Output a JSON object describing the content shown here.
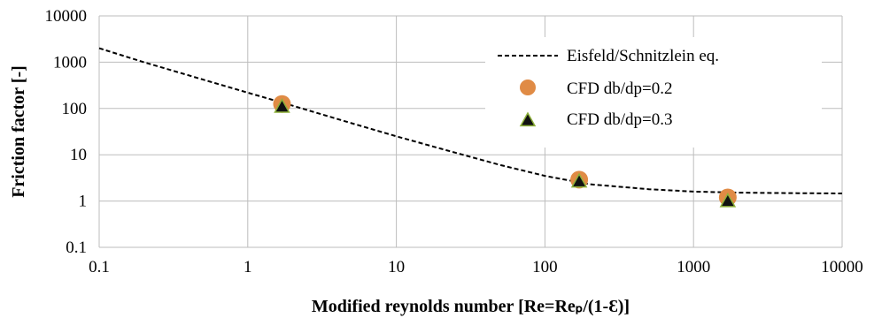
{
  "chart_data": {
    "type": "scatter",
    "xscale": "log",
    "yscale": "log",
    "xlim": [
      0.1,
      10000
    ],
    "ylim": [
      0.1,
      10000
    ],
    "x_ticks": [
      "0.1",
      "1",
      "10",
      "100",
      "1000",
      "10000"
    ],
    "y_ticks": [
      "0.1",
      "1",
      "10",
      "100",
      "1000",
      "10000"
    ],
    "xlabel": "Modified reynolds number [Re=Reₚ/(1-Ɛ)]",
    "ylabel": "Friction factor [-]",
    "grid": true,
    "legend_position": "top-right",
    "series": [
      {
        "name": "Eisfeld/Schnitzlein eq.",
        "kind": "dashed-line",
        "color": "#000000",
        "x": [
          0.1,
          0.2,
          0.5,
          1,
          2,
          5,
          10,
          20,
          50,
          100,
          200,
          500,
          1000,
          2000,
          5000,
          10000
        ],
        "y": [
          2000,
          1000,
          420,
          220,
          115,
          48,
          25,
          13.5,
          6,
          3.5,
          2.3,
          1.8,
          1.6,
          1.52,
          1.48,
          1.46
        ]
      },
      {
        "name": "CFD db/dp=0.2",
        "kind": "circle-markers",
        "color": "#E08B45",
        "x": [
          1.7,
          170,
          1700
        ],
        "y": [
          125,
          2.9,
          1.2
        ]
      },
      {
        "name": "CFD db/dp=0.3",
        "kind": "triangle-markers",
        "color": "#111111",
        "edge_color": "#8DB13A",
        "x": [
          1.7,
          170,
          1700
        ],
        "y": [
          115,
          2.8,
          1.05
        ]
      }
    ]
  }
}
